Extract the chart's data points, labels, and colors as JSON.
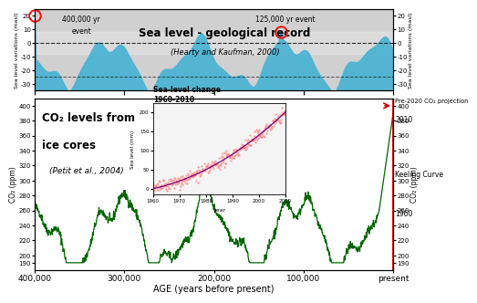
{
  "title_top": "Sea level - geological record",
  "subtitle_top": "(Hearty and Kaufman, 2000)",
  "title_bottom_line1": "CO₂ levels from",
  "title_bottom_line2": "ice cores",
  "title_bottom_line3": "(Petit et al., 2004)",
  "xlabel": "AGE (years before present)",
  "ylabel_left_top": "Sea level variations (masl)",
  "ylabel_right_top": "Sea level variations (masl)",
  "ylabel_left_bottom": "CO₂ (ppm)",
  "ylabel_right_bottom": "CO₂ (ppm)",
  "top_bg_color": "#d0d0d0",
  "top_fill_color": "#4ab3d4",
  "bottom_bg_color": "#ffffff",
  "sea_level_ylim": [
    -35,
    25
  ],
  "co2_ylim": [
    180,
    410
  ],
  "age_xlim": [
    400000,
    0
  ],
  "annotation_400k_line1": "400,000 yr",
  "annotation_400k_line2": "event",
  "annotation_125k_line1": "125,000 yr event",
  "inset_title": "Sea-level change\n1960-2010",
  "inset_xlabel": "year",
  "inset_ylabel": "Sea level (mm)",
  "keeling_label": "Keeling Curve",
  "pre2020_label": "Pre-2020 CO₂ projection",
  "year_1960": "1960",
  "year_2010": "2010",
  "red_line_color": "#cc0000",
  "green_line_color": "#006600",
  "blue_fill_color": "#4ab3d4"
}
